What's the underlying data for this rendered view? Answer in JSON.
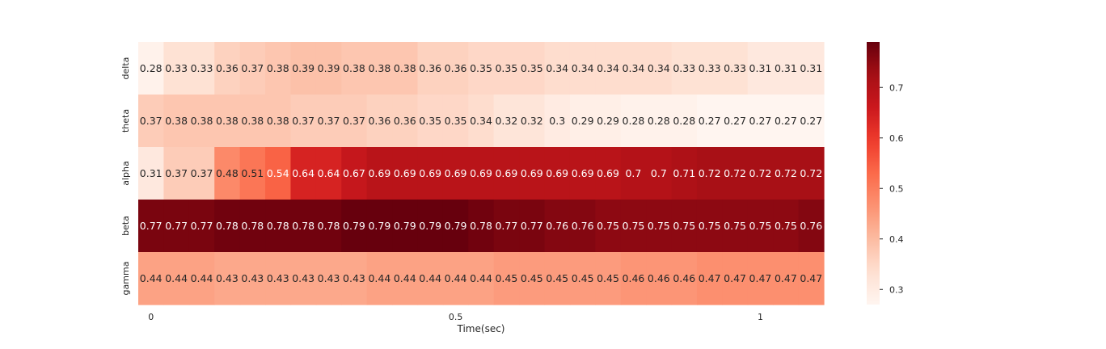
{
  "chart_data": {
    "type": "heatmap",
    "colormap": "Reds",
    "title": "",
    "xlabel": "Time(sec)",
    "ylabel": "",
    "rows": [
      "delta",
      "theta",
      "alpha",
      "beta",
      "gamma"
    ],
    "x_ticks": [
      {
        "label": "0",
        "col": 0.5
      },
      {
        "label": "0.5",
        "col": 12.5
      },
      {
        "label": "1",
        "col": 24.5
      }
    ],
    "values": [
      [
        0.28,
        0.33,
        0.33,
        0.36,
        0.37,
        0.38,
        0.39,
        0.39,
        0.38,
        0.38,
        0.38,
        0.36,
        0.36,
        0.35,
        0.35,
        0.35,
        0.34,
        0.34,
        0.34,
        0.34,
        0.34,
        0.33,
        0.33,
        0.33,
        0.31,
        0.31,
        0.31
      ],
      [
        0.37,
        0.38,
        0.38,
        0.38,
        0.38,
        0.38,
        0.37,
        0.37,
        0.37,
        0.36,
        0.36,
        0.35,
        0.35,
        0.34,
        0.32,
        0.32,
        0.3,
        0.29,
        0.29,
        0.28,
        0.28,
        0.28,
        0.27,
        0.27,
        0.27,
        0.27,
        0.27
      ],
      [
        0.31,
        0.37,
        0.37,
        0.48,
        0.51,
        0.54,
        0.64,
        0.64,
        0.67,
        0.69,
        0.69,
        0.69,
        0.69,
        0.69,
        0.69,
        0.69,
        0.69,
        0.69,
        0.69,
        0.7,
        0.7,
        0.71,
        0.72,
        0.72,
        0.72,
        0.72,
        0.72
      ],
      [
        0.77,
        0.77,
        0.77,
        0.78,
        0.78,
        0.78,
        0.78,
        0.78,
        0.79,
        0.79,
        0.79,
        0.79,
        0.79,
        0.78,
        0.77,
        0.77,
        0.76,
        0.76,
        0.75,
        0.75,
        0.75,
        0.75,
        0.75,
        0.75,
        0.75,
        0.75,
        0.76
      ],
      [
        0.44,
        0.44,
        0.44,
        0.43,
        0.43,
        0.43,
        0.43,
        0.43,
        0.43,
        0.44,
        0.44,
        0.44,
        0.44,
        0.44,
        0.45,
        0.45,
        0.45,
        0.45,
        0.45,
        0.46,
        0.46,
        0.46,
        0.47,
        0.47,
        0.47,
        0.47,
        0.47
      ]
    ],
    "vmin": 0.27,
    "vmax": 0.79,
    "colorbar": {
      "ticks": [
        0.3,
        0.4,
        0.5,
        0.6,
        0.7
      ],
      "tick_labels": [
        "0.3",
        "0.4",
        "0.5",
        "0.6",
        "0.7"
      ]
    }
  }
}
